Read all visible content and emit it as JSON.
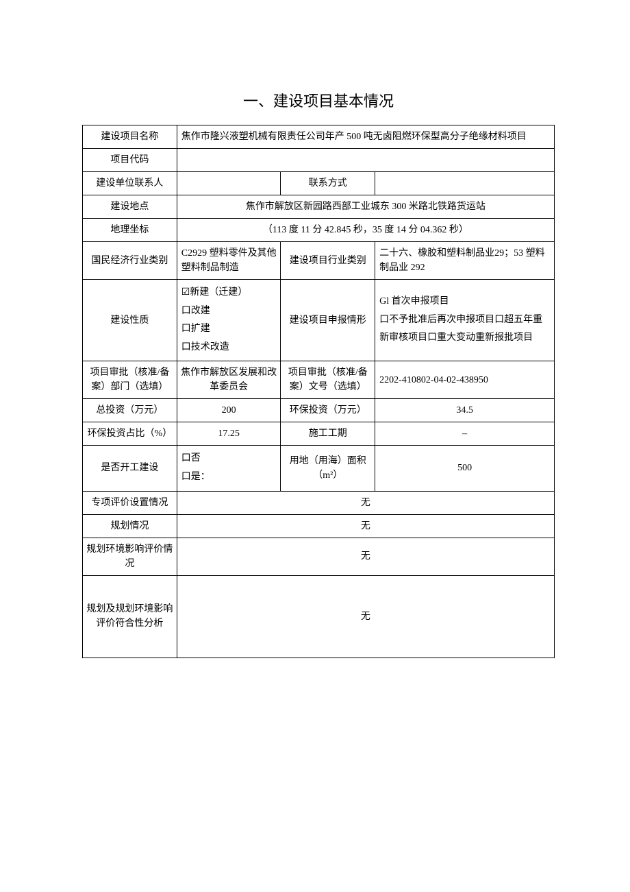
{
  "heading": "一、建设项目基本情况",
  "rows": {
    "project_name_label": "建设项目名称",
    "project_name_value": "焦作市隆兴液塑机械有限责任公司年产 500 吨无卤阻燃环保型高分子绝缘材料项目",
    "project_code_label": "项目代码",
    "project_code_value": "",
    "contact_person_label": "建设单位联系人",
    "contact_person_value": "",
    "contact_method_label": "联系方式",
    "contact_method_value": "",
    "location_label": "建设地点",
    "location_value": "焦作市解放区新园路西部工业城东 300 米路北铁路货运站",
    "coords_label": "地理坐标",
    "coords_value": "（113 度 11 分 42.845 秒，35 度 14 分 04.362 秒）",
    "industry_label": "国民经济行业类别",
    "industry_value": "C2929 塑料零件及其他塑料制品制造",
    "project_industry_label": "建设项目行业类别",
    "project_industry_value": "二十六、橡胶和塑料制品业29；53 塑料制品业 292",
    "build_nature_label": "建设性质",
    "build_nature_value": "☑新建（迁建）\n口改建\n口扩建\n口技术改造",
    "report_type_label": "建设项目申报情形",
    "report_type_value": "Gl 首次申报项目\n口不予批准后再次申报项目口超五年重新审核项目口重大变动重新报批项目",
    "approval_dept_label": "项目审批（核准/备案）部门（选填）",
    "approval_dept_value": "焦作市解放区发展和改革委员会",
    "approval_no_label": "项目审批（核准/备案）文号（选填）",
    "approval_no_value": "2202-410802-04-02-438950",
    "total_investment_label": "总投资（万元）",
    "total_investment_value": "200",
    "env_investment_label": "环保投资（万元）",
    "env_investment_value": "34.5",
    "env_ratio_label": "环保投资占比（%）",
    "env_ratio_value": "17.25",
    "construction_period_label": "施工工期",
    "construction_period_value": "–",
    "is_started_label": "是否开工建设",
    "is_started_value": "口否\n口是：",
    "land_area_label": "用地（用海）面积（m²）",
    "land_area_value": "500",
    "special_eval_label": "专项评价设置情况",
    "special_eval_value": "无",
    "planning_label": "规划情况",
    "planning_value": "无",
    "planning_env_label": "规划环境影响评价情况",
    "planning_env_value": "无",
    "planning_compliance_label": "规划及规划环境影响评价符合性分析",
    "planning_compliance_value": "无"
  },
  "style": {
    "border_color": "#000000",
    "background_color": "#ffffff",
    "title_fontsize": 22,
    "body_fontsize": 14,
    "font_family": "SimSun"
  }
}
